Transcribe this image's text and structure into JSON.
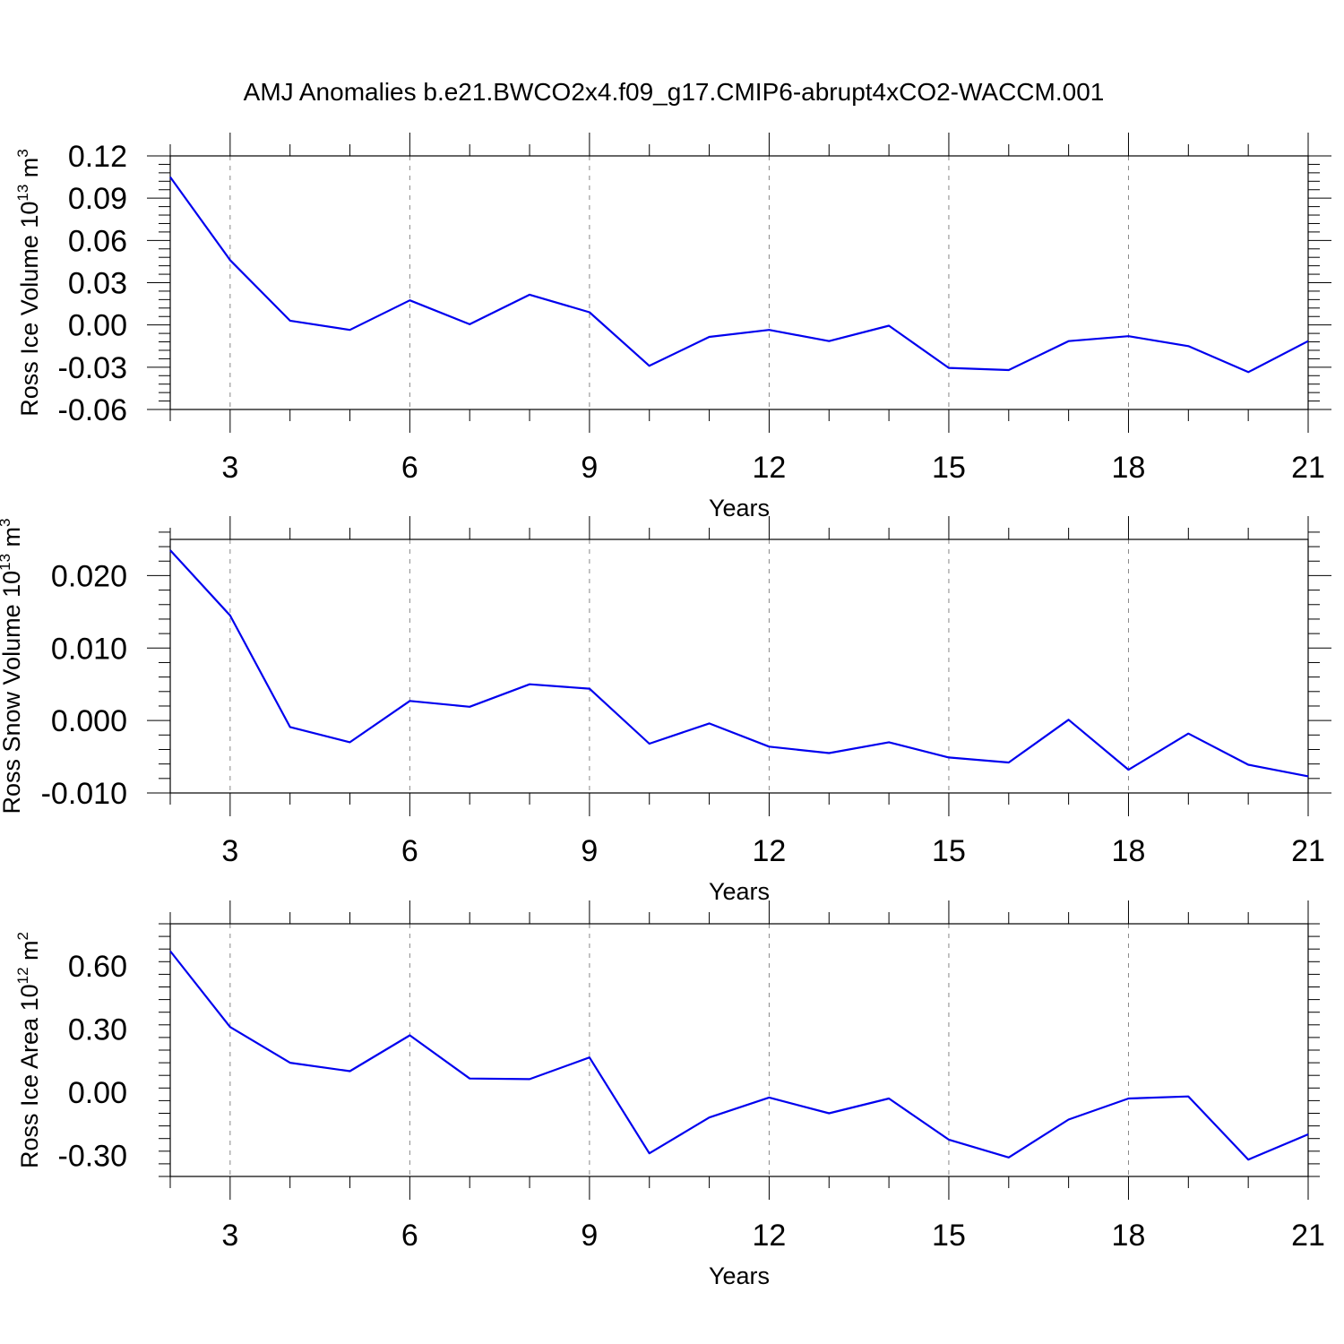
{
  "figure_title": "AMJ Anomalies b.e21.BWCO2x4.f09_g17.CMIP6-abrupt4xCO2-WACCM.001",
  "chart_data": [
    {
      "type": "line",
      "xlabel": "Years",
      "ylabel": "Ross Ice Volume 10",
      "ylabel_exp": "13",
      "ylabel_unit": " m",
      "ylabel_unit_exp": "3",
      "xlim": [
        2,
        21
      ],
      "ylim": [
        -0.06,
        0.12
      ],
      "xticks": [
        3,
        6,
        9,
        12,
        15,
        18,
        21
      ],
      "yticks": [
        0.12,
        0.09,
        0.06,
        0.03,
        0.0,
        -0.03,
        -0.06
      ],
      "ytick_labels": [
        "0.12",
        "0.09",
        "0.06",
        "0.03",
        "0.00",
        "-0.03",
        "-0.06"
      ],
      "grid": "vertical dashed at major x ticks",
      "color": "#0000ee",
      "series": [
        {
          "x": [
            2,
            3,
            4,
            5,
            6,
            7,
            8,
            9,
            10,
            11,
            12,
            13,
            14,
            15,
            16,
            17,
            18,
            19,
            20,
            21
          ],
          "values": [
            0.105,
            0.046,
            0.003,
            -0.0035,
            0.0175,
            0.0005,
            0.0215,
            0.009,
            -0.029,
            -0.0085,
            -0.0035,
            -0.0115,
            -0.0005,
            -0.0305,
            -0.032,
            -0.0115,
            -0.008,
            -0.015,
            -0.0335,
            -0.0115
          ]
        }
      ]
    },
    {
      "type": "line",
      "xlabel": "Years",
      "ylabel": "Ross Snow Volume 10",
      "ylabel_exp": "13",
      "ylabel_unit": " m",
      "ylabel_unit_exp": "3",
      "xlim": [
        2,
        21
      ],
      "ylim": [
        -0.01,
        0.025
      ],
      "xticks": [
        3,
        6,
        9,
        12,
        15,
        18,
        21
      ],
      "yticks": [
        0.02,
        0.01,
        0.0,
        -0.01
      ],
      "ytick_labels": [
        "0.020",
        "0.010",
        "0.000",
        "-0.010"
      ],
      "grid": "vertical dashed at major x ticks",
      "color": "#0000ee",
      "series": [
        {
          "x": [
            2,
            3,
            4,
            5,
            6,
            7,
            8,
            9,
            10,
            11,
            12,
            13,
            14,
            15,
            16,
            17,
            18,
            19,
            20,
            21
          ],
          "values": [
            0.0235,
            0.0145,
            -0.0009,
            -0.003,
            0.0027,
            0.0019,
            0.005,
            0.0044,
            -0.0032,
            -0.0004,
            -0.0036,
            -0.0045,
            -0.003,
            -0.0051,
            -0.0058,
            0.0001,
            -0.0068,
            -0.0018,
            -0.0061,
            -0.0077
          ]
        }
      ]
    },
    {
      "type": "line",
      "xlabel": "Years",
      "ylabel": "Ross Ice Area 10",
      "ylabel_exp": "12",
      "ylabel_unit": " m",
      "ylabel_unit_exp": "2",
      "xlim": [
        2,
        21
      ],
      "ylim": [
        -0.4,
        0.8
      ],
      "xticks": [
        3,
        6,
        9,
        12,
        15,
        18,
        21
      ],
      "yticks": [
        0.6,
        0.3,
        0.0,
        -0.3
      ],
      "ytick_labels": [
        "0.60",
        "0.30",
        "0.00",
        "-0.30"
      ],
      "grid": "vertical dashed at major x ticks",
      "color": "#0000ee",
      "series": [
        {
          "x": [
            2,
            3,
            4,
            5,
            6,
            7,
            8,
            9,
            10,
            11,
            12,
            13,
            14,
            15,
            16,
            17,
            18,
            19,
            20,
            21
          ],
          "values": [
            0.67,
            0.31,
            0.14,
            0.1,
            0.27,
            0.065,
            0.062,
            0.165,
            -0.29,
            -0.12,
            -0.025,
            -0.1,
            -0.03,
            -0.225,
            -0.31,
            -0.13,
            -0.03,
            -0.02,
            -0.32,
            -0.2
          ]
        }
      ]
    }
  ]
}
